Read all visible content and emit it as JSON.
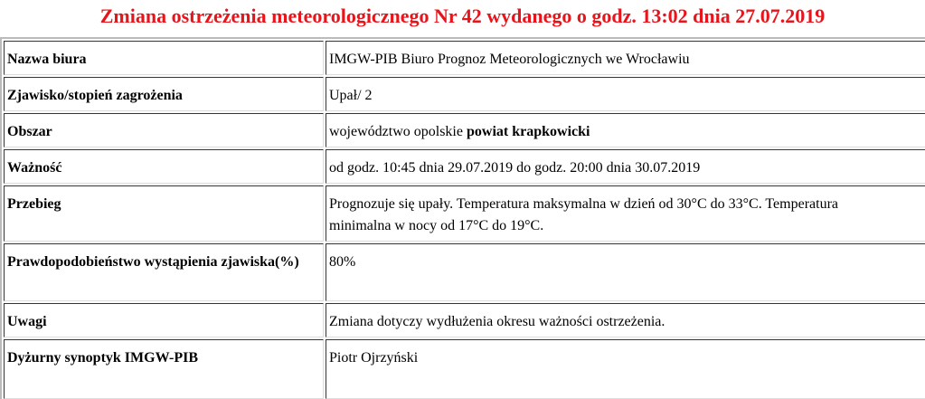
{
  "title": "Zmiana ostrzeżenia meteorologicznego Nr 42 wydanego o godz. 13:02 dnia 27.07.2019",
  "rows": [
    {
      "label": "Nazwa biura",
      "value": "IMGW-PIB Biuro Prognoz Meteorologicznych we Wrocławiu"
    },
    {
      "label": "Zjawisko/stopień zagrożenia",
      "value": "Upał/ 2"
    },
    {
      "label": "Obszar",
      "value": "województwo opolskie ",
      "value_bold": "powiat krapkowicki"
    },
    {
      "label": "Ważność",
      "value": "od godz. 10:45 dnia 29.07.2019 do godz. 20:00 dnia 30.07.2019"
    },
    {
      "label": "Przebieg",
      "value": "Prognozuje się upały. Temperatura maksymalna w dzień od 30°C do 33°C. Temperatura minimalna w nocy od 17°C do 19°C."
    },
    {
      "label": "Prawdopodobieństwo wystąpienia zjawiska(%)",
      "value": "80%"
    },
    {
      "label": "Uwagi",
      "value": "Zmiana dotyczy wydłużenia okresu ważności ostrzeżenia."
    },
    {
      "label": "Dyżurny synoptyk IMGW-PIB",
      "value": "Piotr Ojrzyński"
    }
  ]
}
